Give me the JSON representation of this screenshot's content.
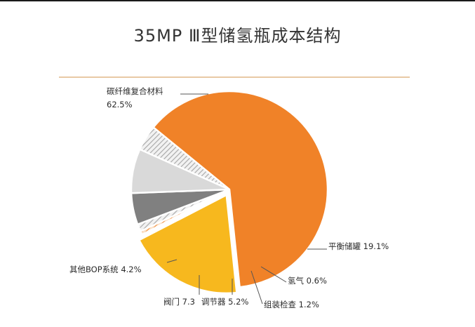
{
  "page": {
    "title": "35MP Ⅲ型储氢瓶成本结构"
  },
  "chart_data": {
    "type": "pie",
    "title": "35MP Ⅲ型储氢瓶成本结构",
    "start_angle_deg": 84,
    "explode_order": 1,
    "slices": [
      {
        "key": "carbon",
        "label": "碳纤维复合材料",
        "value_text": "62.5%",
        "value": 62.5,
        "color": "#F08228",
        "pattern": "none"
      },
      {
        "key": "tank",
        "label": "平衡储罐",
        "value_text": "19.1%",
        "value": 19.1,
        "color": "#F7B81E",
        "pattern": "none"
      },
      {
        "key": "h2",
        "label": "氢气",
        "value_text": "0.6%",
        "value": 0.6,
        "color": "#F08228",
        "pattern": "stripe"
      },
      {
        "key": "assy",
        "label": "组装检查",
        "value_text": "1.2%",
        "value": 1.2,
        "color": "#BFBFBF",
        "pattern": "stripe"
      },
      {
        "key": "reg",
        "label": "调节器",
        "value_text": "5.2%",
        "value": 5.2,
        "color": "#808080",
        "pattern": "none"
      },
      {
        "key": "valve",
        "label": "阀门",
        "value_text": "7.3",
        "value": 7.3,
        "color": "#D9D9D9",
        "pattern": "none"
      },
      {
        "key": "bop",
        "label": "其他BOP系统",
        "value_text": "4.2%",
        "value": 4.2,
        "color": "#E6E6E6",
        "pattern": "stripe"
      }
    ]
  }
}
